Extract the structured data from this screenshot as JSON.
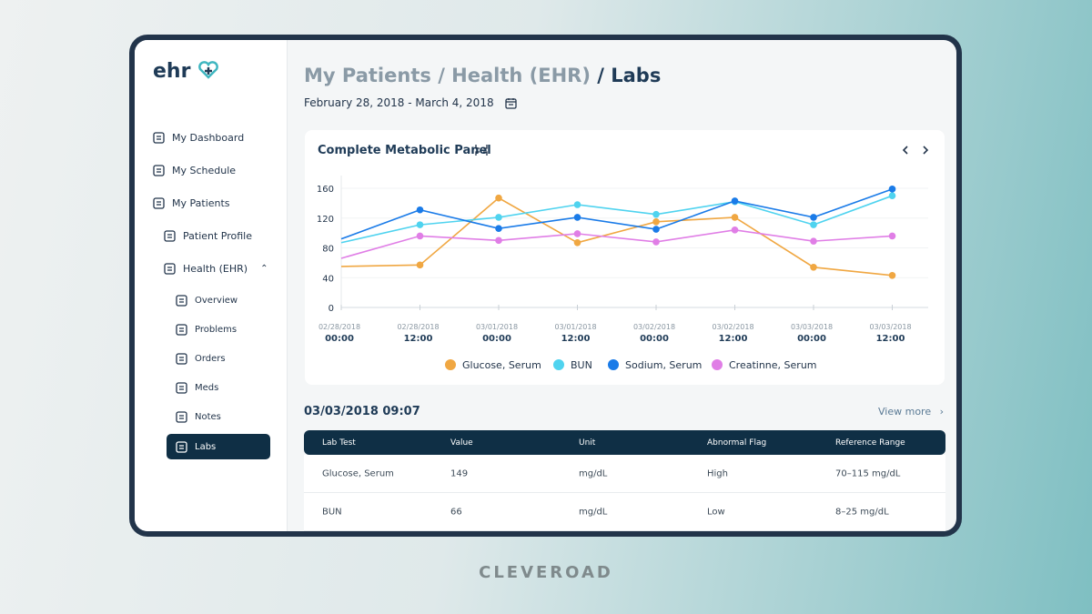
{
  "brand": "ehr",
  "nav": [
    "My Dashboard",
    "My Schedule",
    "My Patients"
  ],
  "patient_nav": [
    "Patient Profile",
    "Health (EHR)"
  ],
  "ehr_nav": [
    "Overview",
    "Problems",
    "Orders",
    "Meds",
    "Notes",
    "Labs"
  ],
  "header": {
    "path": [
      "My Patients",
      "Health (EHR)"
    ],
    "separator": "/",
    "current": "Labs",
    "date_range": "February 28, 2018 - March 4, 2018"
  },
  "chart": {
    "type": "line",
    "title": "Complete Metabolic Panel",
    "categories": [
      [
        "02/28/2018",
        "00:00"
      ],
      [
        "02/28/2018",
        "12:00"
      ],
      [
        "03/01/2018",
        "00:00"
      ],
      [
        "03/01/2018",
        "12:00"
      ],
      [
        "03/02/2018",
        "00:00"
      ],
      [
        "03/02/2018",
        "12:00"
      ],
      [
        "03/03/2018",
        "00:00"
      ],
      [
        "03/03/2018",
        "12:00"
      ]
    ],
    "series": [
      {
        "name": "Glucose, Serum",
        "color": "#f0a742",
        "values": [
          55,
          57,
          147,
          87,
          115,
          121,
          54,
          43
        ]
      },
      {
        "name": "BUN",
        "color": "#4fd3ef",
        "values": [
          87,
          111,
          121,
          138,
          125,
          142,
          111,
          150
        ]
      },
      {
        "name": "Sodium, Serum",
        "color": "#1a7be8",
        "values": [
          92,
          131,
          106,
          121,
          105,
          143,
          121,
          159
        ]
      },
      {
        "name": "Creatinne, Serum",
        "color": "#e07ee6",
        "values": [
          66,
          96,
          90,
          99,
          88,
          104,
          89,
          96
        ]
      }
    ],
    "ylim": [
      0,
      160
    ],
    "yticks": [
      0,
      40,
      80,
      120,
      160
    ],
    "grid": true
  },
  "results": {
    "timestamp": "03/03/2018 09:07",
    "view_more": "View more",
    "columns": [
      "Lab Test",
      "Value",
      "Unit",
      "Abnormal Flag",
      "Reference Range"
    ],
    "rows": [
      [
        "Glucose, Serum",
        149,
        "mg/dL",
        "High",
        "70–115 mg/dL"
      ],
      [
        "BUN",
        66,
        "mg/dL",
        "Low",
        "8–25 mg/dL"
      ]
    ]
  },
  "footer": "CLEVEROAD"
}
